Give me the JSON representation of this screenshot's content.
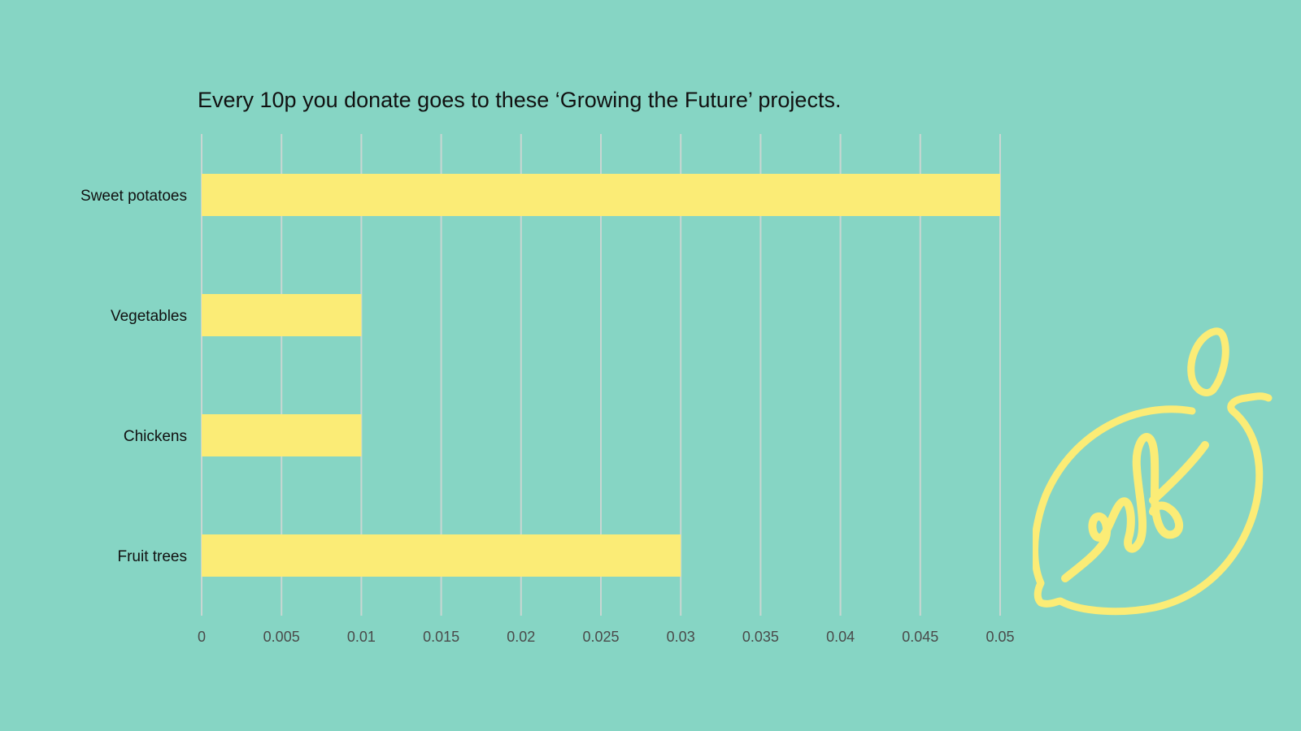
{
  "chart_data": {
    "type": "bar",
    "orientation": "horizontal",
    "title": "Every 10p you donate goes to these ‘Growing the Future’ projects.",
    "categories": [
      "Sweet potatoes",
      "Vegetables",
      "Chickens",
      "Fruit trees"
    ],
    "values": [
      0.05,
      0.01,
      0.01,
      0.03
    ],
    "xlim": [
      0,
      0.05
    ],
    "xticks": [
      "0",
      "0.005",
      "0.01",
      "0.015",
      "0.02",
      "0.025",
      "0.03",
      "0.035",
      "0.04",
      "0.045",
      "0.05"
    ],
    "xlabel": "",
    "ylabel": "",
    "grid": "vertical",
    "legend": "none"
  },
  "colors": {
    "background": "#86d5c4",
    "bar": "#fbec76",
    "gridline": "#c9d6d2",
    "tick_text": "#4a4a4a",
    "category_text": "#111111",
    "logo": "#fbec76"
  },
  "logo": {
    "icon": "lemon-logo-icon"
  }
}
